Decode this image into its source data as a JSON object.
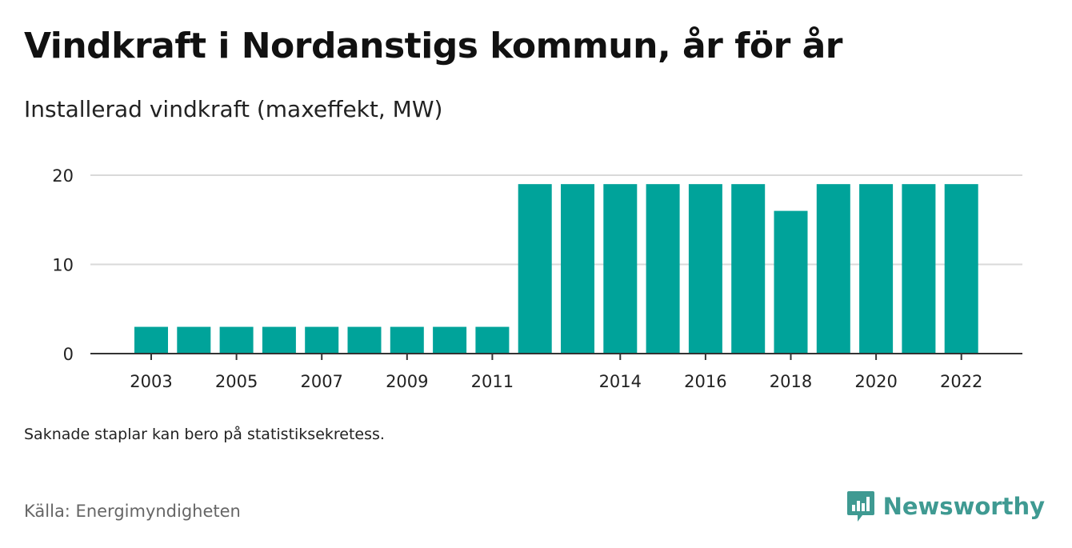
{
  "title": "Vindkraft i Nordanstigs kommun, år för år",
  "subtitle": "Installerad vindkraft (maxeffekt, MW)",
  "note": "Saknade staplar kan bero på statistiksekretess.",
  "source": "Källa: Energimyndigheten",
  "brand": {
    "name": "Newsworthy",
    "icon": "newsworthy-logo-icon",
    "color": "#3f9a92"
  },
  "colors": {
    "bar": "#00a39a",
    "grid": "#d9d9d9",
    "axis": "#333333"
  },
  "chart_data": {
    "type": "bar",
    "categories": [
      "2003",
      "2004",
      "2005",
      "2006",
      "2007",
      "2008",
      "2009",
      "2010",
      "2011",
      "2012",
      "2013",
      "2014",
      "2015",
      "2016",
      "2017",
      "2018",
      "2019",
      "2020",
      "2021",
      "2022"
    ],
    "values": [
      3,
      3,
      3,
      3,
      3,
      3,
      3,
      3,
      3,
      19,
      19,
      19,
      19,
      19,
      19,
      16,
      19,
      19,
      19,
      19
    ],
    "x_tick_labels": [
      "2003",
      "2005",
      "2007",
      "2009",
      "2011",
      "2014",
      "2016",
      "2018",
      "2020",
      "2022"
    ],
    "y_ticks": [
      0,
      10,
      20
    ],
    "ylim": [
      0,
      20
    ],
    "xlabel": "",
    "ylabel": "",
    "grid": true
  }
}
